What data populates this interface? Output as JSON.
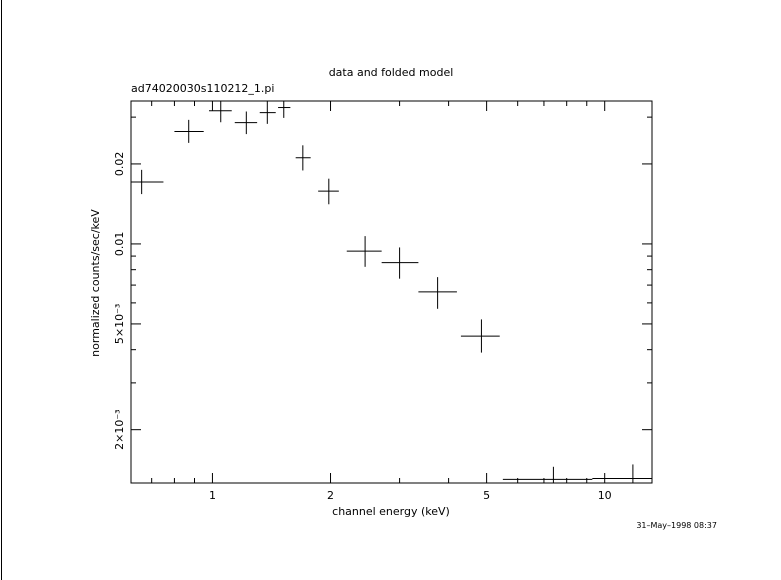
{
  "chart_data": {
    "type": "scatter",
    "title": "data and folded model",
    "subtitle": "ad74020030s110212_1.pi",
    "xlabel": "channel energy (keV)",
    "ylabel": "normalized counts/sec/keV",
    "timestamp": "31–May–1998 08:37",
    "x_scale": "log",
    "y_scale": "log",
    "xlim": [
      0.62,
      13.2
    ],
    "ylim": [
      0.00126,
      0.0345
    ],
    "x_ticks": [
      {
        "value": 1,
        "label": "1"
      },
      {
        "value": 2,
        "label": "2"
      },
      {
        "value": 5,
        "label": "5"
      },
      {
        "value": 10,
        "label": "10"
      }
    ],
    "y_ticks": [
      {
        "value": 0.002,
        "label": "2×10⁻³"
      },
      {
        "value": 0.005,
        "label": "5×10⁻³"
      },
      {
        "value": 0.01,
        "label": "0.01"
      },
      {
        "value": 0.02,
        "label": "0.02"
      }
    ],
    "points": [
      {
        "x": 0.66,
        "xlo": 0.62,
        "xhi": 0.75,
        "y": 0.0171,
        "ylo": 0.0154,
        "yhi": 0.019
      },
      {
        "x": 0.87,
        "xlo": 0.8,
        "xhi": 0.95,
        "y": 0.0265,
        "ylo": 0.024,
        "yhi": 0.0293
      },
      {
        "x": 1.05,
        "xlo": 0.98,
        "xhi": 1.12,
        "y": 0.0317,
        "ylo": 0.0287,
        "yhi": 0.035
      },
      {
        "x": 1.22,
        "xlo": 1.14,
        "xhi": 1.3,
        "y": 0.0286,
        "ylo": 0.0259,
        "yhi": 0.0315
      },
      {
        "x": 1.38,
        "xlo": 1.32,
        "xhi": 1.45,
        "y": 0.0312,
        "ylo": 0.0283,
        "yhi": 0.0345
      },
      {
        "x": 1.52,
        "xlo": 1.47,
        "xhi": 1.58,
        "y": 0.0326,
        "ylo": 0.0298,
        "yhi": 0.0345
      },
      {
        "x": 1.7,
        "xlo": 1.63,
        "xhi": 1.78,
        "y": 0.0211,
        "ylo": 0.0189,
        "yhi": 0.0235
      },
      {
        "x": 1.98,
        "xlo": 1.86,
        "xhi": 2.1,
        "y": 0.0158,
        "ylo": 0.0141,
        "yhi": 0.0176
      },
      {
        "x": 2.45,
        "xlo": 2.2,
        "xhi": 2.7,
        "y": 0.0094,
        "ylo": 0.0082,
        "yhi": 0.0107
      },
      {
        "x": 3.0,
        "xlo": 2.7,
        "xhi": 3.35,
        "y": 0.0085,
        "ylo": 0.0074,
        "yhi": 0.0097
      },
      {
        "x": 3.75,
        "xlo": 3.35,
        "xhi": 4.2,
        "y": 0.0066,
        "ylo": 0.0057,
        "yhi": 0.0075
      },
      {
        "x": 4.85,
        "xlo": 4.3,
        "xhi": 5.4,
        "y": 0.0045,
        "ylo": 0.0039,
        "yhi": 0.0052
      },
      {
        "x": 7.4,
        "xlo": 5.5,
        "xhi": 9.3,
        "y": 0.0013,
        "ylo": 0.00126,
        "yhi": 0.00145
      },
      {
        "x": 11.8,
        "xlo": 9.3,
        "xhi": 13.2,
        "y": 0.00131,
        "ylo": 0.00126,
        "yhi": 0.00148
      }
    ]
  }
}
